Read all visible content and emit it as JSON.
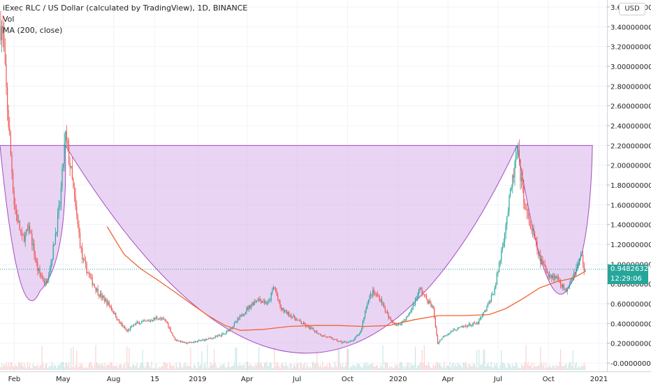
{
  "header": {
    "title": "iExec RLC / US Dollar (calculated by TradingView), 1D, BINANCE",
    "vol_label": "Vol",
    "ma_label": "MA (200, close)",
    "unit_label": "USD"
  },
  "price_axis": {
    "ticks": [
      "3.60000000",
      "3.40000000",
      "3.20000000",
      "3.00000000",
      "2.80000000",
      "2.60000000",
      "2.40000000",
      "2.20000000",
      "2.00000000",
      "1.80000000",
      "1.60000000",
      "1.40000000",
      "1.20000000",
      "1.00000000",
      "0.80000000",
      "0.60000000",
      "0.40000000",
      "0.20000000",
      "-0.00000000"
    ],
    "last_price": "0.94826325",
    "countdown": "12:29:06"
  },
  "time_axis": {
    "ticks": [
      "Feb",
      "May",
      "Aug",
      "15",
      "2019",
      "Apr",
      "Jul",
      "Oct",
      "2020",
      "Apr",
      "Jul",
      "Oct",
      "2021"
    ]
  },
  "colors": {
    "up": "#26a69a",
    "down": "#ef5350",
    "ma": "#f0642e",
    "pattern_fill": "#dcb7ec",
    "pattern_stroke": "#a24bbf",
    "grid": "#f0f3fa"
  },
  "chart_data": {
    "type": "candlestick",
    "symbol": "iExec RLC / US Dollar",
    "interval": "1D",
    "ylim": [
      -0.02,
      3.62
    ],
    "close_path": [
      {
        "x": "2018-01-10",
        "y": 3.4
      },
      {
        "x": "2018-01-18",
        "y": 2.7
      },
      {
        "x": "2018-02-01",
        "y": 1.6
      },
      {
        "x": "2018-02-15",
        "y": 1.25
      },
      {
        "x": "2018-03-01",
        "y": 1.35
      },
      {
        "x": "2018-03-15",
        "y": 0.95
      },
      {
        "x": "2018-03-30",
        "y": 0.8
      },
      {
        "x": "2018-04-10",
        "y": 1.05
      },
      {
        "x": "2018-04-25",
        "y": 1.6
      },
      {
        "x": "2018-05-05",
        "y": 2.3
      },
      {
        "x": "2018-05-15",
        "y": 1.95
      },
      {
        "x": "2018-05-25",
        "y": 1.5
      },
      {
        "x": "2018-06-05",
        "y": 1.05
      },
      {
        "x": "2018-06-20",
        "y": 0.85
      },
      {
        "x": "2018-07-05",
        "y": 0.7
      },
      {
        "x": "2018-07-25",
        "y": 0.58
      },
      {
        "x": "2018-08-10",
        "y": 0.42
      },
      {
        "x": "2018-08-25",
        "y": 0.32
      },
      {
        "x": "2018-09-10",
        "y": 0.4
      },
      {
        "x": "2018-10-01",
        "y": 0.42
      },
      {
        "x": "2018-10-20",
        "y": 0.46
      },
      {
        "x": "2018-11-05",
        "y": 0.42
      },
      {
        "x": "2018-11-20",
        "y": 0.24
      },
      {
        "x": "2018-12-10",
        "y": 0.2
      },
      {
        "x": "2019-01-01",
        "y": 0.22
      },
      {
        "x": "2019-02-01",
        "y": 0.26
      },
      {
        "x": "2019-02-20",
        "y": 0.3
      },
      {
        "x": "2019-03-10",
        "y": 0.4
      },
      {
        "x": "2019-04-01",
        "y": 0.55
      },
      {
        "x": "2019-04-20",
        "y": 0.65
      },
      {
        "x": "2019-05-10",
        "y": 0.6
      },
      {
        "x": "2019-05-20",
        "y": 0.78
      },
      {
        "x": "2019-06-01",
        "y": 0.55
      },
      {
        "x": "2019-06-20",
        "y": 0.48
      },
      {
        "x": "2019-07-10",
        "y": 0.4
      },
      {
        "x": "2019-07-25",
        "y": 0.35
      },
      {
        "x": "2019-08-15",
        "y": 0.28
      },
      {
        "x": "2019-09-01",
        "y": 0.25
      },
      {
        "x": "2019-09-20",
        "y": 0.21
      },
      {
        "x": "2019-10-10",
        "y": 0.22
      },
      {
        "x": "2019-10-25",
        "y": 0.32
      },
      {
        "x": "2019-11-05",
        "y": 0.6
      },
      {
        "x": "2019-11-15",
        "y": 0.72
      },
      {
        "x": "2019-11-30",
        "y": 0.65
      },
      {
        "x": "2019-12-15",
        "y": 0.45
      },
      {
        "x": "2020-01-01",
        "y": 0.38
      },
      {
        "x": "2020-01-20",
        "y": 0.48
      },
      {
        "x": "2020-02-10",
        "y": 0.75
      },
      {
        "x": "2020-02-25",
        "y": 0.62
      },
      {
        "x": "2020-03-05",
        "y": 0.55
      },
      {
        "x": "2020-03-13",
        "y": 0.2
      },
      {
        "x": "2020-03-25",
        "y": 0.28
      },
      {
        "x": "2020-04-15",
        "y": 0.34
      },
      {
        "x": "2020-05-05",
        "y": 0.38
      },
      {
        "x": "2020-05-25",
        "y": 0.4
      },
      {
        "x": "2020-06-10",
        "y": 0.55
      },
      {
        "x": "2020-06-25",
        "y": 0.75
      },
      {
        "x": "2020-07-05",
        "y": 1.05
      },
      {
        "x": "2020-07-15",
        "y": 1.4
      },
      {
        "x": "2020-07-25",
        "y": 1.75
      },
      {
        "x": "2020-08-05",
        "y": 2.15
      },
      {
        "x": "2020-08-12",
        "y": 1.85
      },
      {
        "x": "2020-08-22",
        "y": 1.5
      },
      {
        "x": "2020-09-03",
        "y": 1.3
      },
      {
        "x": "2020-09-15",
        "y": 1.05
      },
      {
        "x": "2020-10-01",
        "y": 0.9
      },
      {
        "x": "2020-10-20",
        "y": 0.85
      },
      {
        "x": "2020-11-01",
        "y": 0.72
      },
      {
        "x": "2020-11-10",
        "y": 0.85
      },
      {
        "x": "2020-11-20",
        "y": 0.95
      },
      {
        "x": "2020-12-01",
        "y": 1.1
      },
      {
        "x": "2020-12-06",
        "y": 0.9
      },
      {
        "x": "2020-12-08",
        "y": 0.95
      }
    ],
    "ma200": [
      {
        "x": "2018-07-20",
        "y": 1.38
      },
      {
        "x": "2018-08-20",
        "y": 1.1
      },
      {
        "x": "2018-09-20",
        "y": 0.95
      },
      {
        "x": "2018-10-20",
        "y": 0.84
      },
      {
        "x": "2018-11-20",
        "y": 0.72
      },
      {
        "x": "2018-12-20",
        "y": 0.6
      },
      {
        "x": "2019-01-20",
        "y": 0.48
      },
      {
        "x": "2019-02-20",
        "y": 0.38
      },
      {
        "x": "2019-03-20",
        "y": 0.33
      },
      {
        "x": "2019-05-01",
        "y": 0.34
      },
      {
        "x": "2019-06-15",
        "y": 0.37
      },
      {
        "x": "2019-08-01",
        "y": 0.38
      },
      {
        "x": "2019-09-15",
        "y": 0.38
      },
      {
        "x": "2019-11-01",
        "y": 0.37
      },
      {
        "x": "2019-12-15",
        "y": 0.38
      },
      {
        "x": "2020-02-01",
        "y": 0.44
      },
      {
        "x": "2020-03-15",
        "y": 0.48
      },
      {
        "x": "2020-05-01",
        "y": 0.48
      },
      {
        "x": "2020-06-15",
        "y": 0.49
      },
      {
        "x": "2020-07-15",
        "y": 0.55
      },
      {
        "x": "2020-08-15",
        "y": 0.65
      },
      {
        "x": "2020-09-15",
        "y": 0.76
      },
      {
        "x": "2020-10-15",
        "y": 0.82
      },
      {
        "x": "2020-11-15",
        "y": 0.86
      },
      {
        "x": "2020-12-08",
        "y": 0.93
      }
    ],
    "cup_and_handle": {
      "rim_level": 2.2,
      "left_rim": "2018-05-05",
      "cup_bottom": {
        "x": "2019-08-15",
        "y": 0.1
      },
      "right_rim": "2020-08-05",
      "handle_end": "2020-12-20",
      "left_small_cup_low": {
        "x": "2018-03-20",
        "y": 0.73
      },
      "handle_low": {
        "x": "2020-11-01",
        "y": 0.72
      }
    },
    "last_price": 0.94826325
  }
}
